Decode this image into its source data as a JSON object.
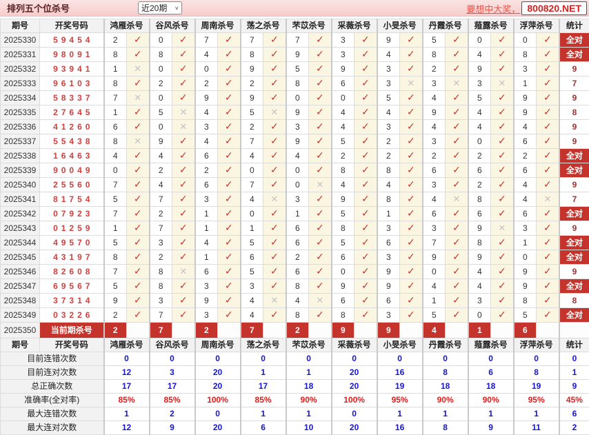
{
  "header_bar": {
    "title": "排列五个位杀号",
    "range_select": "近20期",
    "promo_text": "要想中大奖，",
    "promo_site": "800820.NET"
  },
  "colors": {
    "accent_red": "#c5342c",
    "check_red": "#c5342c",
    "cross_gray": "#c3c3c3",
    "stat_blue": "#1515cc",
    "pct_red": "#e21c1c",
    "bar_pink": "#f8d2d2",
    "mark_cream": "#faf6e2"
  },
  "table": {
    "col_period": "期号",
    "col_numbers": "开奖号码",
    "col_stat": "统计",
    "experts": [
      "鸿雁杀号",
      "谷风杀号",
      "周南杀号",
      "荡之杀号",
      "芣苡杀号",
      "采薇杀号",
      "小旻杀号",
      "丹霞杀号",
      "薤露杀号",
      "浮萍杀号"
    ],
    "all_correct_label": "全对",
    "rows": [
      {
        "period": "2025330",
        "numbers": "59454",
        "kills": [
          2,
          0,
          7,
          7,
          7,
          3,
          9,
          5,
          0,
          0
        ],
        "marks": [
          1,
          1,
          1,
          1,
          1,
          1,
          1,
          1,
          1,
          1
        ],
        "stat": "全对"
      },
      {
        "period": "2025331",
        "numbers": "98091",
        "kills": [
          8,
          8,
          4,
          8,
          9,
          3,
          4,
          8,
          4,
          8
        ],
        "marks": [
          1,
          1,
          1,
          1,
          1,
          1,
          1,
          1,
          1,
          1
        ],
        "stat": "全对"
      },
      {
        "period": "2025332",
        "numbers": "93941",
        "kills": [
          1,
          0,
          0,
          9,
          5,
          9,
          3,
          2,
          9,
          3
        ],
        "marks": [
          0,
          1,
          1,
          1,
          1,
          1,
          1,
          1,
          1,
          1
        ],
        "stat": "9"
      },
      {
        "period": "2025333",
        "numbers": "96103",
        "kills": [
          8,
          2,
          2,
          2,
          8,
          6,
          3,
          3,
          3,
          1
        ],
        "marks": [
          1,
          1,
          1,
          1,
          1,
          1,
          0,
          0,
          0,
          1
        ],
        "stat": "7"
      },
      {
        "period": "2025334",
        "numbers": "58337",
        "kills": [
          7,
          0,
          9,
          9,
          0,
          0,
          5,
          4,
          5,
          9
        ],
        "marks": [
          0,
          1,
          1,
          1,
          1,
          1,
          1,
          1,
          1,
          1
        ],
        "stat": "9"
      },
      {
        "period": "2025335",
        "numbers": "27645",
        "kills": [
          1,
          5,
          4,
          5,
          9,
          4,
          4,
          9,
          4,
          9
        ],
        "marks": [
          1,
          0,
          1,
          0,
          1,
          1,
          1,
          1,
          1,
          1
        ],
        "stat": "8"
      },
      {
        "period": "2025336",
        "numbers": "41260",
        "kills": [
          6,
          0,
          3,
          2,
          3,
          4,
          3,
          4,
          4,
          4
        ],
        "marks": [
          1,
          0,
          1,
          1,
          1,
          1,
          1,
          1,
          1,
          1
        ],
        "stat": "9"
      },
      {
        "period": "2025337",
        "numbers": "55438",
        "kills": [
          8,
          9,
          4,
          7,
          9,
          5,
          2,
          3,
          0,
          6
        ],
        "marks": [
          0,
          1,
          1,
          1,
          1,
          1,
          1,
          1,
          1,
          1
        ],
        "stat": "9"
      },
      {
        "period": "2025338",
        "numbers": "16463",
        "kills": [
          4,
          4,
          6,
          4,
          4,
          2,
          2,
          2,
          2,
          2
        ],
        "marks": [
          1,
          1,
          1,
          1,
          1,
          1,
          1,
          1,
          1,
          1
        ],
        "stat": "全对"
      },
      {
        "period": "2025339",
        "numbers": "90049",
        "kills": [
          0,
          2,
          2,
          0,
          0,
          8,
          8,
          6,
          6,
          6
        ],
        "marks": [
          1,
          1,
          1,
          1,
          1,
          1,
          1,
          1,
          1,
          1
        ],
        "stat": "全对"
      },
      {
        "period": "2025340",
        "numbers": "25560",
        "kills": [
          7,
          4,
          6,
          7,
          0,
          4,
          4,
          3,
          2,
          4
        ],
        "marks": [
          1,
          1,
          1,
          1,
          0,
          1,
          1,
          1,
          1,
          1
        ],
        "stat": "9"
      },
      {
        "period": "2025341",
        "numbers": "81754",
        "kills": [
          5,
          7,
          3,
          4,
          3,
          9,
          8,
          4,
          8,
          4
        ],
        "marks": [
          1,
          1,
          1,
          0,
          1,
          1,
          1,
          0,
          1,
          0
        ],
        "stat": "7"
      },
      {
        "period": "2025342",
        "numbers": "07923",
        "kills": [
          7,
          2,
          1,
          0,
          1,
          5,
          1,
          6,
          6,
          6
        ],
        "marks": [
          1,
          1,
          1,
          1,
          1,
          1,
          1,
          1,
          1,
          1
        ],
        "stat": "全对"
      },
      {
        "period": "2025343",
        "numbers": "01259",
        "kills": [
          1,
          7,
          1,
          1,
          6,
          8,
          3,
          3,
          9,
          3
        ],
        "marks": [
          1,
          1,
          1,
          1,
          1,
          1,
          1,
          1,
          0,
          1
        ],
        "stat": "9"
      },
      {
        "period": "2025344",
        "numbers": "49570",
        "kills": [
          5,
          3,
          4,
          5,
          6,
          5,
          6,
          7,
          8,
          1
        ],
        "marks": [
          1,
          1,
          1,
          1,
          1,
          1,
          1,
          1,
          1,
          1
        ],
        "stat": "全对"
      },
      {
        "period": "2025345",
        "numbers": "43197",
        "kills": [
          8,
          2,
          1,
          6,
          2,
          6,
          3,
          9,
          9,
          0
        ],
        "marks": [
          1,
          1,
          1,
          1,
          1,
          1,
          1,
          1,
          1,
          1
        ],
        "stat": "全对"
      },
      {
        "period": "2025346",
        "numbers": "82608",
        "kills": [
          7,
          8,
          6,
          5,
          6,
          0,
          9,
          0,
          4,
          9
        ],
        "marks": [
          1,
          0,
          1,
          1,
          1,
          1,
          1,
          1,
          1,
          1
        ],
        "stat": "9"
      },
      {
        "period": "2025347",
        "numbers": "69567",
        "kills": [
          5,
          8,
          3,
          3,
          8,
          9,
          9,
          4,
          4,
          9
        ],
        "marks": [
          1,
          1,
          1,
          1,
          1,
          1,
          1,
          1,
          1,
          1
        ],
        "stat": "全对"
      },
      {
        "period": "2025348",
        "numbers": "37314",
        "kills": [
          9,
          3,
          9,
          4,
          4,
          6,
          6,
          1,
          3,
          8
        ],
        "marks": [
          1,
          1,
          1,
          0,
          0,
          1,
          1,
          1,
          1,
          1
        ],
        "stat": "8"
      },
      {
        "period": "2025349",
        "numbers": "03226",
        "kills": [
          2,
          7,
          3,
          4,
          8,
          8,
          3,
          5,
          0,
          5
        ],
        "marks": [
          1,
          1,
          1,
          1,
          1,
          1,
          1,
          1,
          1,
          1
        ],
        "stat": "全对"
      }
    ],
    "current_row": {
      "period": "2025350",
      "label": "当前期杀号",
      "kills": [
        2,
        7,
        2,
        7,
        2,
        9,
        9,
        4,
        1,
        6
      ]
    },
    "stats_rows": [
      {
        "label": "目前连错次数",
        "values": [
          "0",
          "0",
          "0",
          "0",
          "0",
          "0",
          "0",
          "0",
          "0",
          "0"
        ],
        "total": "0",
        "is_pct": false
      },
      {
        "label": "目前连对次数",
        "values": [
          "12",
          "3",
          "20",
          "1",
          "1",
          "20",
          "16",
          "8",
          "6",
          "8"
        ],
        "total": "1",
        "is_pct": false
      },
      {
        "label": "总正确次数",
        "values": [
          "17",
          "17",
          "20",
          "17",
          "18",
          "20",
          "19",
          "18",
          "18",
          "19"
        ],
        "total": "9",
        "is_pct": false
      },
      {
        "label": "准确率(全对率)",
        "values": [
          "85%",
          "85%",
          "100%",
          "85%",
          "90%",
          "100%",
          "95%",
          "90%",
          "90%",
          "95%"
        ],
        "total": "45%",
        "is_pct": true
      },
      {
        "label": "最大连错次数",
        "values": [
          "1",
          "2",
          "0",
          "1",
          "1",
          "0",
          "1",
          "1",
          "1",
          "1"
        ],
        "total": "6",
        "is_pct": false
      },
      {
        "label": "最大连对次数",
        "values": [
          "12",
          "9",
          "20",
          "6",
          "10",
          "20",
          "16",
          "8",
          "9",
          "11"
        ],
        "total": "2",
        "is_pct": false
      }
    ]
  },
  "icons": {
    "check": "✓",
    "cross": "✕",
    "chevron_down": "˅"
  }
}
